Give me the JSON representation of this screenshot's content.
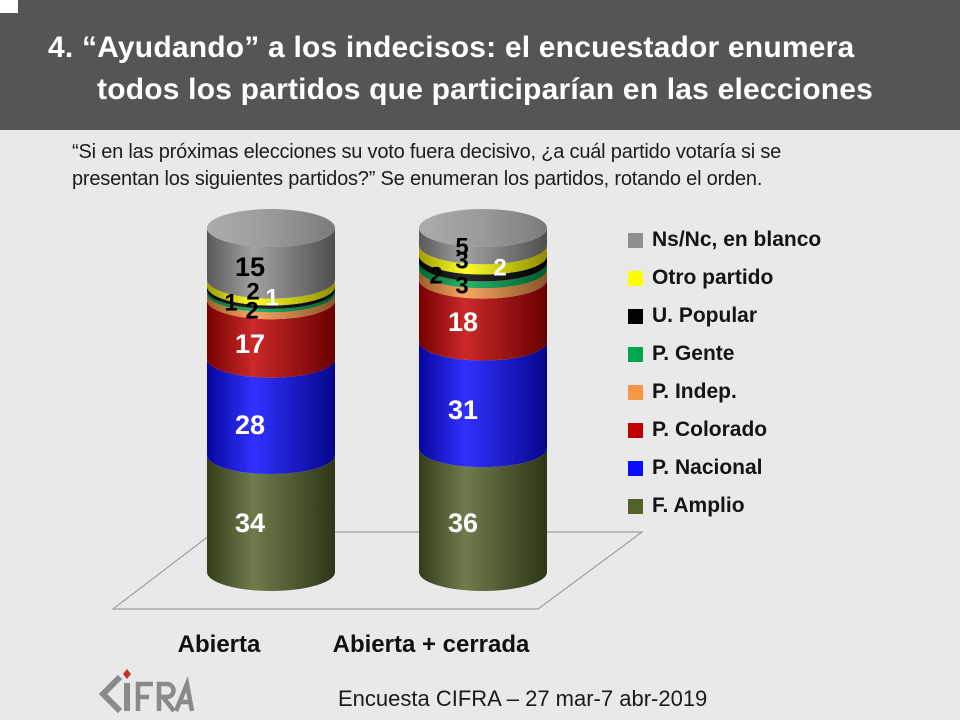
{
  "slide": {
    "title_line1": "4. “Ayudando” a los indecisos: el encuestador enumera",
    "title_line2": "todos los partidos que participarían en las elecciones",
    "subtitle_line1": "“Si en las próximas elecciones su voto fuera decisivo, ¿a cuál partido votaría si se",
    "subtitle_line2": "presentan los siguientes partidos?” Se enumeran los partidos, rotando el orden.",
    "footer": "Encuesta CIFRA – 27 mar-7 abr-2019",
    "logo_text": "CIFRA"
  },
  "colors": {
    "header_bg": "#555555",
    "slide_bg": "#e9e9e9",
    "title_text": "#ffffff"
  },
  "chart_data": {
    "type": "bar",
    "subtype": "3d-stacked-cylinder-100pct",
    "categories": [
      "Abierta",
      "Abierta + cerrada"
    ],
    "series": [
      {
        "name": "F. Amplio",
        "color": "#52632a",
        "values": [
          34,
          36
        ]
      },
      {
        "name": "P. Nacional",
        "color": "#0a0aff",
        "values": [
          28,
          31
        ]
      },
      {
        "name": "P. Colorado",
        "color": "#c00000",
        "values": [
          17,
          18
        ]
      },
      {
        "name": "P. Indep.",
        "color": "#f79646",
        "values": [
          2,
          3
        ]
      },
      {
        "name": "P. Gente",
        "color": "#00a64f",
        "values": [
          1,
          2
        ]
      },
      {
        "name": "U. Popular",
        "color": "#000000",
        "values": [
          1,
          2
        ]
      },
      {
        "name": "Otro partido",
        "color": "#ffff00",
        "values": [
          2,
          3
        ]
      },
      {
        "name": "Ns/Nc, en blanco",
        "color": "#8f8f8f",
        "values": [
          15,
          5
        ]
      }
    ],
    "legend_order_top_to_bottom": [
      "Ns/Nc, en blanco",
      "Otro partido",
      "U. Popular",
      "P. Gente",
      "P. Indep.",
      "P. Colorado",
      "P. Nacional",
      "F. Amplio"
    ],
    "ylim": [
      0,
      100
    ],
    "grid": false,
    "legend_position": "right"
  }
}
